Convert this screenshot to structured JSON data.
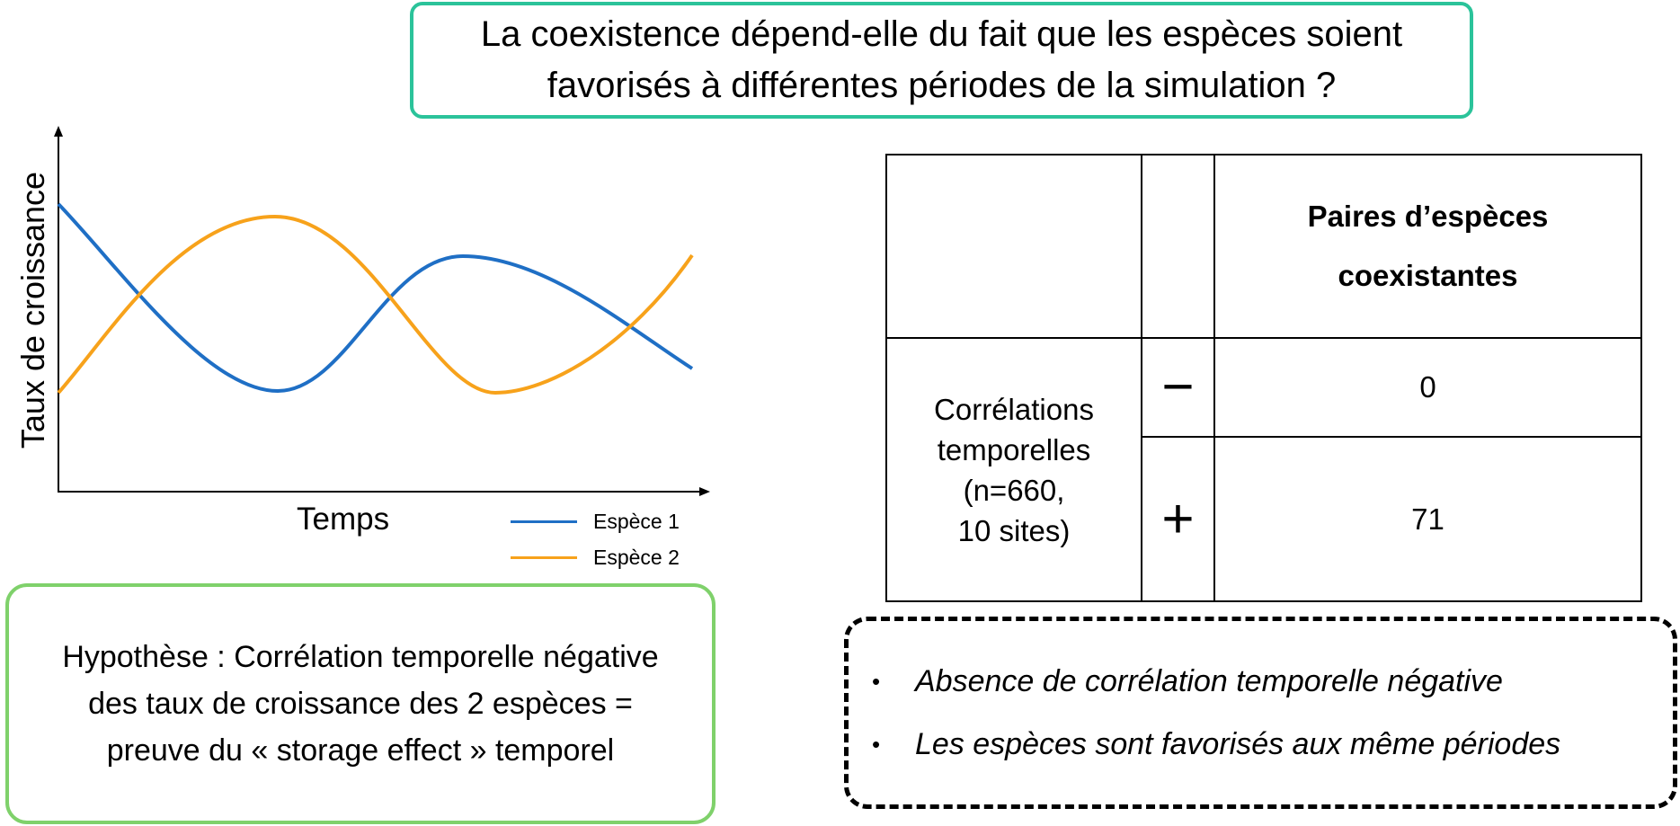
{
  "question": {
    "line1": "La coexistence dépend-elle du fait que les espèces soient",
    "line2": "favorisés à différentes périodes de la simulation ?"
  },
  "chart_data": {
    "type": "line",
    "title": "",
    "xlabel": "Temps",
    "ylabel": "Taux de croissance",
    "grid": false,
    "legend": "bottom-right",
    "series": [
      {
        "name": "Espèce 1",
        "color": "#1f6fc5"
      },
      {
        "name": "Espèce 2",
        "color": "#f7a21b"
      }
    ]
  },
  "hypothesis": {
    "line1": "Hypothèse : Corrélation temporelle négative",
    "line2": "des taux de croissance des 2 espèces =",
    "line3": "preuve du « storage effect » temporel"
  },
  "table": {
    "header": {
      "line1": "Paires d’espèces",
      "line2": "coexistantes"
    },
    "row_header": {
      "line1": "Corrélations",
      "line2": "temporelles",
      "line3": "(n=660,",
      "line4": "10 sites)"
    },
    "rows": [
      {
        "sign": "−",
        "value": "0"
      },
      {
        "sign": "+",
        "value": "71"
      }
    ]
  },
  "conclusions": {
    "bullet": "•",
    "items": [
      "Absence de corrélation temporelle négative",
      "Les espèces sont favorisés aux même périodes"
    ]
  }
}
